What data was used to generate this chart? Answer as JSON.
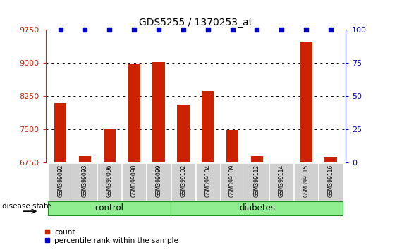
{
  "title": "GDS5255 / 1370253_at",
  "samples": [
    "GSM399092",
    "GSM399093",
    "GSM399096",
    "GSM399098",
    "GSM399099",
    "GSM399102",
    "GSM399104",
    "GSM399109",
    "GSM399112",
    "GSM399114",
    "GSM399115",
    "GSM399116"
  ],
  "counts": [
    8100,
    6900,
    7500,
    8970,
    9020,
    8060,
    8360,
    7490,
    6900,
    6620,
    9480,
    6870
  ],
  "percentiles": [
    100,
    100,
    100,
    100,
    100,
    100,
    100,
    100,
    100,
    100,
    100,
    100
  ],
  "bar_color": "#cc2200",
  "scatter_color": "#0000cc",
  "ylim_left": [
    6750,
    9750
  ],
  "ylim_right": [
    0,
    100
  ],
  "yticks_left": [
    6750,
    7500,
    8250,
    9000,
    9750
  ],
  "yticks_right": [
    0,
    25,
    50,
    75,
    100
  ],
  "groups": [
    {
      "label": "control",
      "start": 0,
      "end": 5
    },
    {
      "label": "diabetes",
      "start": 5,
      "end": 12
    }
  ],
  "disease_state_label": "disease state",
  "legend_count_label": "count",
  "legend_percentile_label": "percentile rank within the sample",
  "control_color": "#90ee90",
  "diabetes_color": "#90ee90"
}
